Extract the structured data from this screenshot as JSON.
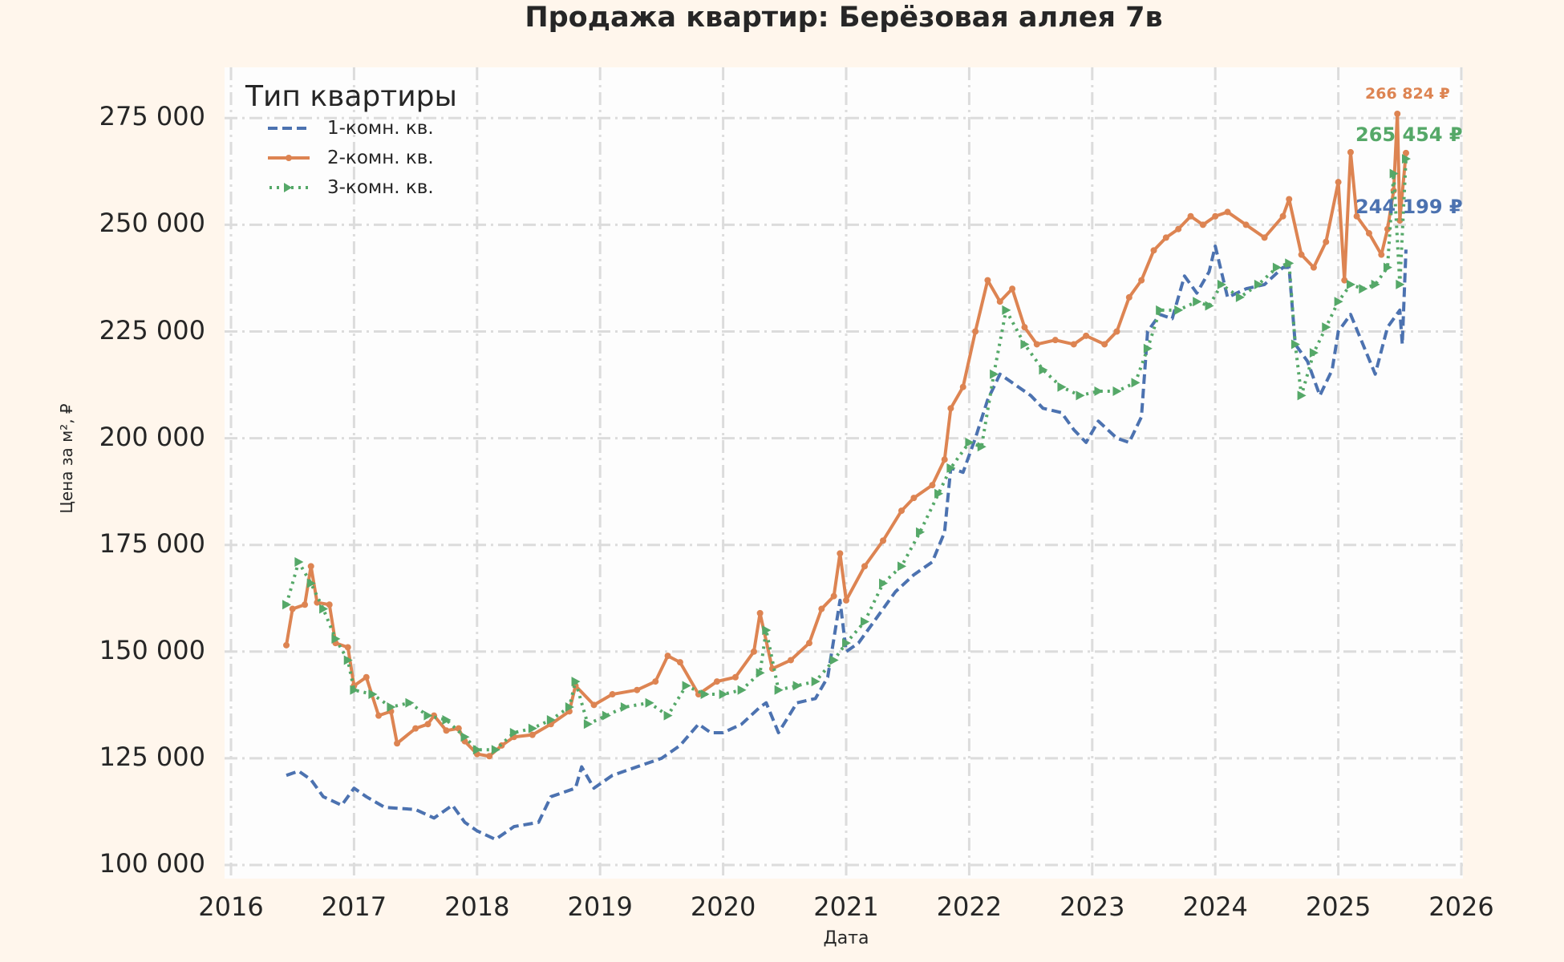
{
  "chart_data": {
    "type": "line",
    "title": "Продажа квартир: Берёзовая аллея 7в",
    "xlabel": "Дата",
    "ylabel": "Цена за м², ₽",
    "xlim": [
      2016,
      2026
    ],
    "ylim": [
      96800,
      285500
    ],
    "x_ticks": [
      "2016",
      "2017",
      "2018",
      "2019",
      "2020",
      "2021",
      "2022",
      "2023",
      "2024",
      "2025",
      "2026"
    ],
    "y_ticks": [
      "100 000",
      "125 000",
      "150 000",
      "175 000",
      "200 000",
      "225 000",
      "250 000",
      "275 000"
    ],
    "y_tick_values": [
      100000,
      125000,
      150000,
      175000,
      200000,
      225000,
      250000,
      275000
    ],
    "grid": true,
    "legend": {
      "title": "Тип квартиры",
      "position": "upper left"
    },
    "series": [
      {
        "name": "1-комн. кв.",
        "color": "#4c72b0",
        "style": "dashed",
        "last_value_label": "244 199 ₽",
        "x": [
          2016.45,
          2016.55,
          2016.65,
          2016.75,
          2016.9,
          2017.0,
          2017.1,
          2017.25,
          2017.5,
          2017.65,
          2017.8,
          2017.9,
          2018.0,
          2018.15,
          2018.3,
          2018.5,
          2018.6,
          2018.8,
          2018.85,
          2018.95,
          2019.1,
          2019.3,
          2019.5,
          2019.65,
          2019.8,
          2019.9,
          2020.0,
          2020.15,
          2020.3,
          2020.35,
          2020.45,
          2020.6,
          2020.75,
          2020.85,
          2020.95,
          2021.0,
          2021.1,
          2021.25,
          2021.4,
          2021.55,
          2021.7,
          2021.8,
          2021.85,
          2021.95,
          2022.05,
          2022.15,
          2022.25,
          2022.4,
          2022.5,
          2022.6,
          2022.75,
          2022.85,
          2022.95,
          2023.05,
          2023.2,
          2023.3,
          2023.4,
          2023.45,
          2023.55,
          2023.65,
          2023.75,
          2023.85,
          2023.95,
          2024.0,
          2024.1,
          2024.25,
          2024.4,
          2024.55,
          2024.6,
          2024.65,
          2024.75,
          2024.85,
          2024.95,
          2025.0,
          2025.1,
          2025.2,
          2025.3,
          2025.4,
          2025.5,
          2025.52,
          2025.55
        ],
        "values": [
          121000,
          122000,
          120000,
          116000,
          114000,
          118000,
          116000,
          113500,
          113000,
          111000,
          114000,
          110000,
          108000,
          106000,
          109000,
          110000,
          116000,
          118000,
          123000,
          118000,
          121000,
          123000,
          125000,
          128000,
          133000,
          131000,
          131000,
          133000,
          137000,
          138000,
          131000,
          138000,
          139000,
          144000,
          162000,
          150000,
          152000,
          158000,
          164000,
          168000,
          171000,
          178000,
          193000,
          192000,
          200000,
          209000,
          215000,
          212000,
          210000,
          207000,
          206000,
          202000,
          199000,
          204000,
          200000,
          199000,
          205000,
          225000,
          229000,
          228000,
          238000,
          234000,
          239000,
          245000,
          233000,
          235000,
          236000,
          240000,
          240000,
          222000,
          218000,
          210000,
          216000,
          225000,
          229000,
          222000,
          215000,
          226000,
          230000,
          222000,
          244199
        ]
      },
      {
        "name": "2-комн. кв.",
        "color": "#dd8452",
        "style": "solid-dot",
        "last_value_label": "266 824 ₽",
        "x": [
          2016.45,
          2016.5,
          2016.6,
          2016.65,
          2016.7,
          2016.8,
          2016.85,
          2016.95,
          2017.0,
          2017.1,
          2017.2,
          2017.3,
          2017.35,
          2017.5,
          2017.6,
          2017.65,
          2017.75,
          2017.85,
          2017.9,
          2018.0,
          2018.1,
          2018.2,
          2018.3,
          2018.45,
          2018.6,
          2018.75,
          2018.8,
          2018.95,
          2019.1,
          2019.3,
          2019.45,
          2019.55,
          2019.65,
          2019.8,
          2019.95,
          2020.1,
          2020.25,
          2020.3,
          2020.4,
          2020.55,
          2020.7,
          2020.8,
          2020.9,
          2020.95,
          2021.0,
          2021.15,
          2021.3,
          2021.45,
          2021.55,
          2021.7,
          2021.8,
          2021.85,
          2021.95,
          2022.05,
          2022.15,
          2022.25,
          2022.35,
          2022.45,
          2022.55,
          2022.7,
          2022.85,
          2022.95,
          2023.1,
          2023.2,
          2023.3,
          2023.4,
          2023.5,
          2023.6,
          2023.7,
          2023.8,
          2023.9,
          2024.0,
          2024.1,
          2024.25,
          2024.4,
          2024.55,
          2024.6,
          2024.7,
          2024.8,
          2024.9,
          2025.0,
          2025.05,
          2025.1,
          2025.15,
          2025.25,
          2025.35,
          2025.4,
          2025.45,
          2025.48,
          2025.5,
          2025.55
        ],
        "values": [
          151500,
          160000,
          161000,
          170000,
          161500,
          161000,
          152000,
          151000,
          142000,
          144000,
          135000,
          136000,
          128500,
          132000,
          133000,
          135000,
          131500,
          132000,
          129000,
          126000,
          125500,
          128000,
          130000,
          130500,
          133000,
          136000,
          142000,
          137500,
          140000,
          141000,
          143000,
          149000,
          147500,
          140000,
          143000,
          144000,
          150000,
          159000,
          146000,
          148000,
          152000,
          160000,
          163000,
          173000,
          162000,
          170000,
          176000,
          183000,
          186000,
          189000,
          195000,
          207000,
          212000,
          225000,
          237000,
          232000,
          235000,
          226000,
          222000,
          223000,
          222000,
          224000,
          222000,
          225000,
          233000,
          237000,
          244000,
          247000,
          249000,
          252000,
          250000,
          252000,
          253000,
          250000,
          247000,
          252000,
          256000,
          243000,
          240000,
          246000,
          260000,
          237000,
          267000,
          252000,
          248000,
          243000,
          249000,
          258000,
          276000,
          251000,
          266824
        ]
      },
      {
        "name": "3-комн. кв.",
        "color": "#55a868",
        "style": "dotted-triangle",
        "last_value_label": "265 454 ₽",
        "x": [
          2016.45,
          2016.55,
          2016.65,
          2016.75,
          2016.85,
          2016.95,
          2017.0,
          2017.15,
          2017.3,
          2017.45,
          2017.6,
          2017.75,
          2017.9,
          2018.0,
          2018.15,
          2018.3,
          2018.45,
          2018.6,
          2018.75,
          2018.8,
          2018.9,
          2019.05,
          2019.2,
          2019.4,
          2019.55,
          2019.7,
          2019.85,
          2020.0,
          2020.15,
          2020.3,
          2020.35,
          2020.45,
          2020.6,
          2020.75,
          2020.9,
          2021.0,
          2021.15,
          2021.3,
          2021.45,
          2021.6,
          2021.75,
          2021.85,
          2022.0,
          2022.1,
          2022.2,
          2022.3,
          2022.45,
          2022.6,
          2022.75,
          2022.9,
          2023.05,
          2023.2,
          2023.35,
          2023.45,
          2023.55,
          2023.7,
          2023.85,
          2023.95,
          2024.05,
          2024.2,
          2024.35,
          2024.5,
          2024.6,
          2024.65,
          2024.7,
          2024.8,
          2024.9,
          2025.0,
          2025.1,
          2025.2,
          2025.3,
          2025.4,
          2025.45,
          2025.5,
          2025.55
        ],
        "values": [
          161000,
          171000,
          166000,
          160000,
          153000,
          148000,
          141000,
          140000,
          137000,
          138000,
          135000,
          134000,
          130000,
          127000,
          127000,
          131000,
          132000,
          134000,
          137000,
          143000,
          133000,
          135000,
          137000,
          138000,
          135000,
          142000,
          140000,
          140000,
          141000,
          145000,
          155000,
          141000,
          142000,
          143000,
          148000,
          152000,
          157000,
          166000,
          170000,
          178000,
          187000,
          193000,
          199000,
          198000,
          215000,
          230000,
          222000,
          216000,
          212000,
          210000,
          211000,
          211000,
          213000,
          221000,
          230000,
          230000,
          232000,
          231000,
          236000,
          233000,
          236000,
          240000,
          241000,
          222000,
          210000,
          220000,
          226000,
          232000,
          236000,
          235000,
          236000,
          240000,
          262000,
          236000,
          265454
        ]
      }
    ]
  }
}
